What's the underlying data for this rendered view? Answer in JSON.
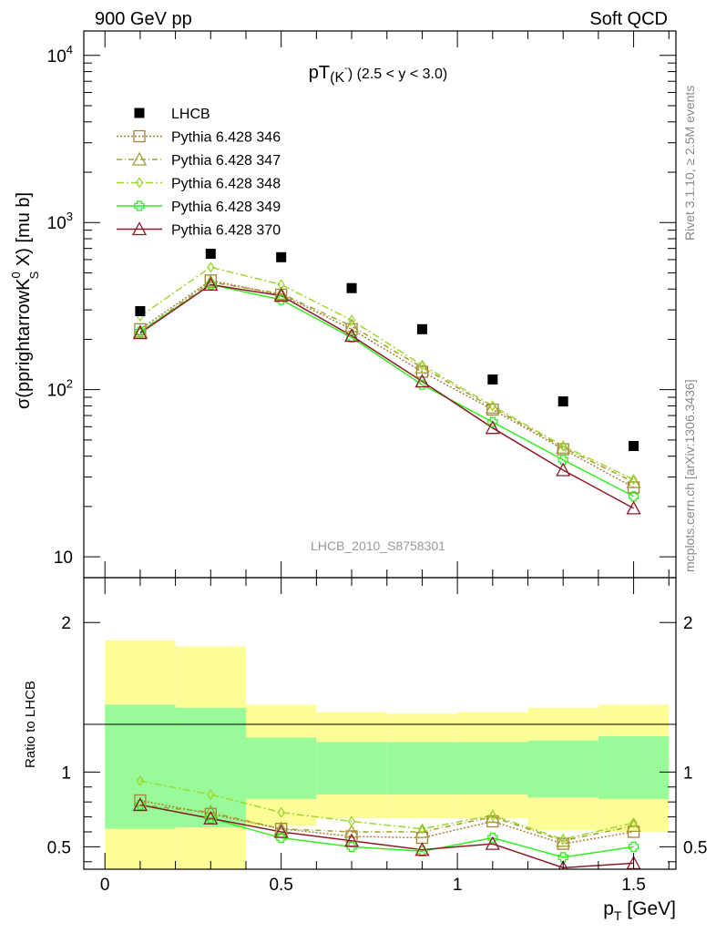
{
  "header": {
    "left": "900 GeV pp",
    "right": "Soft QCD"
  },
  "side_labels": {
    "rivet": "Rivet 3.1.10, ≥ 2.5M events",
    "mcplots": "mcplots.cern.ch [arXiv:1306.3436]"
  },
  "analysis_label": "LHCB_2010_S8758301",
  "chart_data": [
    {
      "type": "scatter",
      "panel": "main",
      "title": "pT",
      "title_sub": "(K",
      "title_sup": "-",
      "title_rest": ") (2.5 < y < 3.0)",
      "ylabel": "σ(pprightarrowK",
      "ylabel_sup": "0",
      "ylabel_sub": "S",
      "ylabel_rest": " X) [mu b]",
      "y_scale": "log",
      "ylim": [
        7.5,
        14000
      ],
      "y_ticks": [
        {
          "value": 10,
          "label": "10"
        },
        {
          "value": 100,
          "label": "10",
          "exp": "2"
        },
        {
          "value": 1000,
          "label": "10",
          "exp": "3"
        },
        {
          "value": 10000,
          "label": "10",
          "exp": "4"
        }
      ],
      "xlim": [
        -0.06,
        1.62
      ],
      "legend_position": "top-left",
      "data": {
        "name": "LHCB",
        "x": [
          0.1,
          0.3,
          0.5,
          0.7,
          0.9,
          1.1,
          1.3,
          1.5
        ],
        "y": [
          295,
          650,
          620,
          405,
          230,
          115,
          85,
          46
        ]
      },
      "series": [
        {
          "name": "Pythia 6.428 346",
          "color": "#a8803e",
          "marker": "square",
          "dash": "2,2",
          "x": [
            0.1,
            0.3,
            0.5,
            0.7,
            0.9,
            1.1,
            1.3,
            1.5
          ],
          "y": [
            230,
            450,
            370,
            230,
            128,
            76,
            44,
            26
          ]
        },
        {
          "name": "Pythia 6.428 347",
          "color": "#a0a02a",
          "marker": "triangle",
          "dash": "6,3,1,3",
          "x": [
            0.1,
            0.3,
            0.5,
            0.7,
            0.9,
            1.1,
            1.3,
            1.5
          ],
          "y": [
            222,
            440,
            375,
            240,
            136,
            78,
            45,
            28
          ]
        },
        {
          "name": "Pythia 6.428 348",
          "color": "#9cd92e",
          "marker": "diamond",
          "dash": "8,3,2,3",
          "x": [
            0.1,
            0.3,
            0.5,
            0.7,
            0.9,
            1.1,
            1.3,
            1.5
          ],
          "y": [
            275,
            540,
            425,
            260,
            140,
            80,
            46,
            29
          ]
        },
        {
          "name": "Pythia 6.428 349",
          "color": "#33ee22",
          "marker": "cross",
          "dash": "",
          "x": [
            0.1,
            0.3,
            0.5,
            0.7,
            0.9,
            1.1,
            1.3,
            1.5
          ],
          "y": [
            222,
            425,
            345,
            205,
            107,
            64,
            38,
            23
          ]
        },
        {
          "name": "Pythia 6.428 370",
          "color": "#8b1a2a",
          "marker": "triangle",
          "dash": "",
          "x": [
            0.1,
            0.3,
            0.5,
            0.7,
            0.9,
            1.1,
            1.3,
            1.5
          ],
          "y": [
            218,
            425,
            365,
            210,
            112,
            59,
            33,
            19.5
          ]
        }
      ]
    },
    {
      "type": "line",
      "panel": "ratio",
      "ylabel": "Ratio to LHCB",
      "xlabel": "p",
      "xlabel_sub": "T",
      "xlabel_rest": " [GeV]",
      "ylim": [
        0.35,
        2.3
      ],
      "y_ticks": [
        {
          "value": 0.5,
          "label": "0.5"
        },
        {
          "value": 1,
          "label": "1"
        },
        {
          "value": 2,
          "label": "2"
        }
      ],
      "xlim": [
        -0.06,
        1.62
      ],
      "x_ticks": [
        {
          "value": 0,
          "label": "0"
        },
        {
          "value": 0.5,
          "label": "0.5"
        },
        {
          "value": 1,
          "label": "1"
        },
        {
          "value": 1.5,
          "label": "1.5"
        }
      ],
      "reference_line": 1,
      "bands": {
        "bins": [
          [
            0.0,
            0.2
          ],
          [
            0.2,
            0.4
          ],
          [
            0.4,
            0.6
          ],
          [
            0.6,
            0.8
          ],
          [
            0.8,
            1.0
          ],
          [
            1.0,
            1.2
          ],
          [
            1.2,
            1.4
          ],
          [
            1.4,
            1.6
          ]
        ],
        "stat_color": "#98fa98",
        "total_color": "#fdfd98",
        "stat_low": [
          0.62,
          0.63,
          0.82,
          0.85,
          0.85,
          0.85,
          0.83,
          0.82
        ],
        "stat_high": [
          1.45,
          1.43,
          1.23,
          1.2,
          1.2,
          1.2,
          1.21,
          1.24
        ],
        "total_low": [
          0.35,
          0.35,
          0.64,
          0.69,
          0.69,
          0.69,
          0.61,
          0.6
        ],
        "total_high": [
          1.88,
          1.84,
          1.45,
          1.4,
          1.39,
          1.4,
          1.43,
          1.45
        ]
      },
      "series": [
        {
          "name": "Pythia 6.428 346",
          "values": [
            0.81,
            0.72,
            0.62,
            0.57,
            0.56,
            0.67,
            0.52,
            0.6
          ]
        },
        {
          "name": "Pythia 6.428 347",
          "values": [
            0.78,
            0.73,
            0.62,
            0.6,
            0.6,
            0.7,
            0.54,
            0.64
          ]
        },
        {
          "name": "Pythia 6.428 348",
          "values": [
            0.94,
            0.85,
            0.73,
            0.67,
            0.62,
            0.71,
            0.55,
            0.66
          ]
        },
        {
          "name": "Pythia 6.428 349",
          "values": [
            0.78,
            0.69,
            0.56,
            0.5,
            0.47,
            0.56,
            0.43,
            0.5
          ]
        },
        {
          "name": "Pythia 6.428 370",
          "values": [
            0.78,
            0.69,
            0.6,
            0.54,
            0.48,
            0.52,
            0.36,
            0.39
          ]
        }
      ]
    }
  ]
}
